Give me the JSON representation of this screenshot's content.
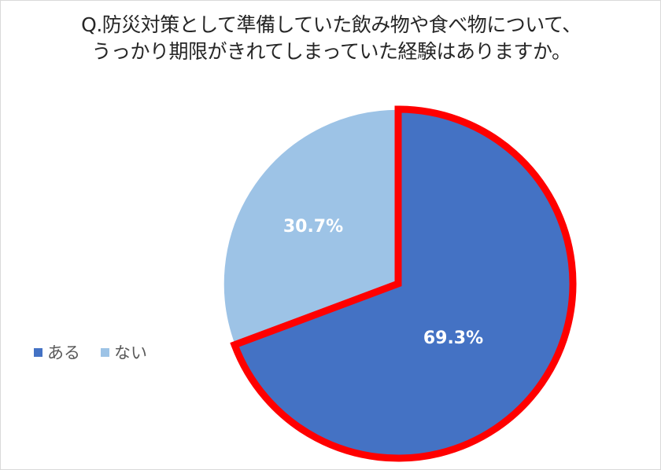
{
  "title_lines": [
    "Q.防災対策として準備していた飲み物や食べ物について、",
    "うっかり期限がきれてしまっていた経験はありますか。"
  ],
  "colors": {
    "series_1": "#4472c4",
    "series_2": "#9dc3e6",
    "highlight_outline": "#ff0000"
  },
  "chart_data": {
    "type": "pie",
    "title": "Q.防災対策として準備していた飲み物や食べ物について、うっかり期限がきれてしまっていた経験はありますか。",
    "legend_position": "left",
    "categories": [
      "ある",
      "ない"
    ],
    "values": [
      69.3,
      30.7
    ],
    "labels": [
      "69.3%",
      "30.7%"
    ],
    "highlighted": "ある"
  }
}
